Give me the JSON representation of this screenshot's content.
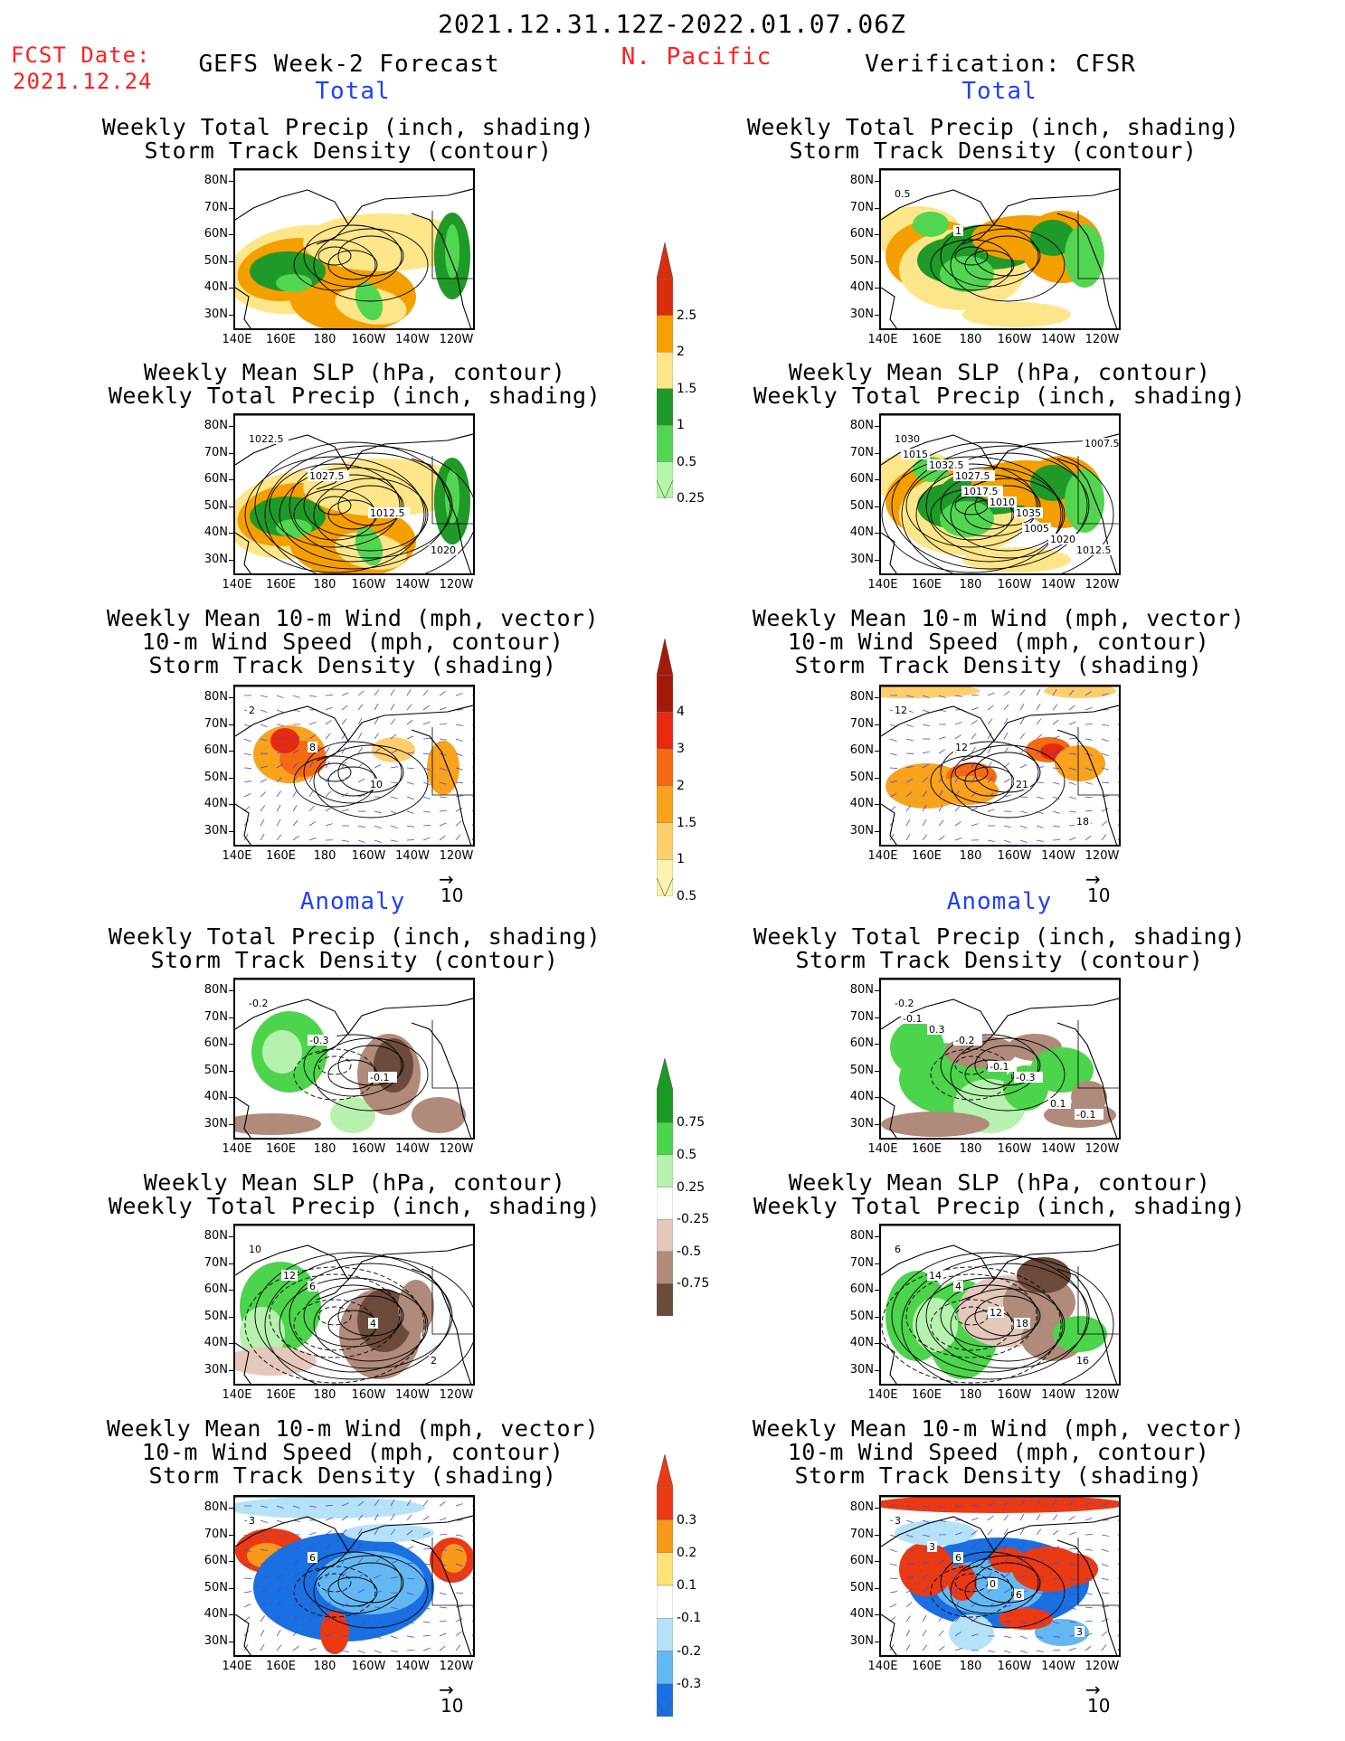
{
  "header": {
    "period": "2021.12.31.12Z-2022.01.07.06Z",
    "fcst_label": "FCST Date:",
    "fcst_date": "2021.12.24",
    "left_title": "GEFS Week-2 Forecast",
    "region": "N. Pacific",
    "right_title": "Verification: CFSR"
  },
  "sections": {
    "total": "Total",
    "anomaly": "Anomaly"
  },
  "titles": {
    "precip_track": "Weekly Total Precip (inch, shading)\nStorm Track Density (contour)",
    "slp_precip": "Weekly Mean SLP (hPa, contour)\nWeekly Total Precip (inch, shading)",
    "wind_track": "Weekly Mean 10-m Wind (mph, vector)\n10-m Wind Speed (mph, contour)\nStorm Track Density (shading)"
  },
  "axes": {
    "lat_ticks": [
      "80N",
      "70N",
      "60N",
      "50N",
      "40N",
      "30N"
    ],
    "lon_ticks": [
      "140E",
      "160E",
      "180",
      "160W",
      "140W",
      "120W"
    ]
  },
  "vector_ref": "10",
  "colorbars": [
    {
      "id": "total-precip",
      "labels": [
        "2.5",
        "2",
        "1.5",
        "1",
        "0.5",
        "0.25"
      ],
      "colors": [
        "#d92e0c",
        "#f59e00",
        "#fde68a",
        "#1f9a28",
        "#52d652",
        "#b5f5a8"
      ]
    },
    {
      "id": "total-track",
      "labels": [
        "4",
        "3",
        "2",
        "1.5",
        "1",
        "0.5"
      ],
      "colors": [
        "#a31a0a",
        "#e52a10",
        "#f46a12",
        "#f9a21c",
        "#fccf6c",
        "#fdf2b2"
      ]
    },
    {
      "id": "anom-precip",
      "labels": [
        "0.75",
        "0.5",
        "0.25",
        "-0.25",
        "-0.5",
        "-0.75"
      ],
      "colors": [
        "#1b9a24",
        "#4cd44c",
        "#b7f1ae",
        "#ffffff",
        "#e4c8bc",
        "#b08a7a",
        "#6c4a3c"
      ]
    },
    {
      "id": "anom-track",
      "labels": [
        "0.3",
        "0.2",
        "0.1",
        "-0.1",
        "-0.2",
        "-0.3"
      ],
      "colors": [
        "#ea3a14",
        "#f79a1c",
        "#fde27a",
        "#ffffff",
        "#b6e2f8",
        "#64b8f2",
        "#1a70e0"
      ]
    }
  ],
  "contour_labels": {
    "fc_precip_total": [],
    "vf_precip_total": [
      "0.5",
      "1"
    ],
    "fc_slp_total": [
      "1022.5",
      "1027.5",
      "1012.5",
      "1020"
    ],
    "vf_slp_total": [
      "1030",
      "1027.5",
      "1035",
      "1012.5",
      "1032.5",
      "1010",
      "1020",
      "1015",
      "1017.5",
      "1005",
      "1007.5"
    ],
    "fc_wind_total": [
      "2",
      "8",
      "10"
    ],
    "vf_wind_total": [
      "12",
      "12",
      "21",
      "18"
    ],
    "fc_precip_anom": [
      "-0.2",
      "-0.3",
      "-0.1"
    ],
    "vf_precip_anom": [
      "-0.2",
      "-0.2",
      "-0.3",
      "-0.1",
      "0.3",
      "-0.1",
      "0.1",
      "-0.1"
    ],
    "fc_slp_anom": [
      "10",
      "6",
      "4",
      "2",
      "12"
    ],
    "vf_slp_anom": [
      "6",
      "4",
      "18",
      "16",
      "14",
      "12"
    ],
    "fc_wind_anom": [
      "3",
      "6"
    ],
    "vf_wind_anom": [
      "3",
      "6",
      "6",
      "3",
      "3",
      "0"
    ]
  },
  "colors": {
    "coast": "#000000",
    "vector": "#4444ee",
    "header_red": "#ff1f1f",
    "section_blue": "#1f3fff"
  }
}
